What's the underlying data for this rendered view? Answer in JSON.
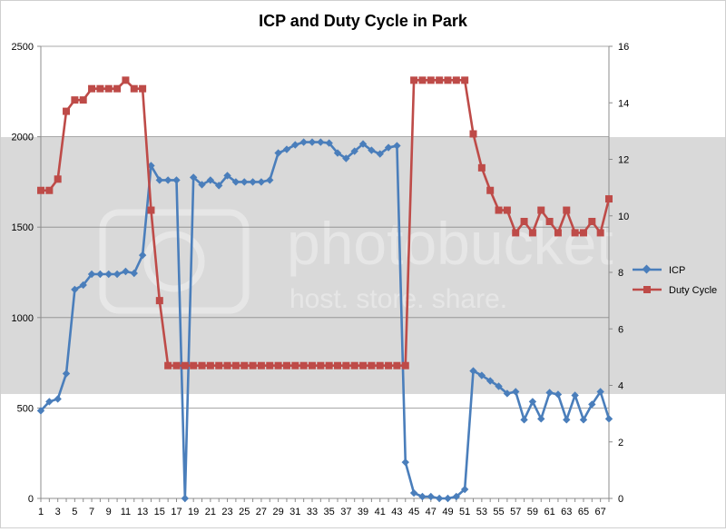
{
  "chart_data": {
    "type": "line",
    "title": "ICP and Duty Cycle in Park",
    "xlabel": "",
    "ylabel": "",
    "y2label": "",
    "x": [
      1,
      2,
      3,
      4,
      5,
      6,
      7,
      8,
      9,
      10,
      11,
      12,
      13,
      14,
      15,
      16,
      17,
      18,
      19,
      20,
      21,
      22,
      23,
      24,
      25,
      26,
      27,
      28,
      29,
      30,
      31,
      32,
      33,
      34,
      35,
      36,
      37,
      38,
      39,
      40,
      41,
      42,
      43,
      44,
      45,
      46,
      47,
      48,
      49,
      50,
      51,
      52,
      53,
      54,
      55,
      56,
      57,
      58,
      59,
      60,
      61,
      62,
      63,
      64,
      65,
      66,
      67,
      68
    ],
    "x_tick_labels": [
      "1",
      "3",
      "5",
      "7",
      "9",
      "11",
      "13",
      "15",
      "17",
      "19",
      "21",
      "23",
      "25",
      "27",
      "29",
      "31",
      "33",
      "35",
      "37",
      "39",
      "41",
      "43",
      "45",
      "47",
      "49",
      "51",
      "53",
      "55",
      "57",
      "59",
      "61",
      "63",
      "65",
      "67"
    ],
    "ylim": [
      0,
      2500
    ],
    "yticks": [
      "0",
      "500",
      "1000",
      "1500",
      "2000",
      "2500"
    ],
    "y2lim": [
      0,
      16
    ],
    "y2ticks": [
      "0",
      "2",
      "4",
      "6",
      "8",
      "10",
      "12",
      "14",
      "16"
    ],
    "grid": true,
    "legend_position": "right",
    "series": [
      {
        "name": "ICP",
        "axis": "left",
        "color": "#4a7ebb",
        "marker": "diamond",
        "values": [
          485,
          535,
          550,
          690,
          1155,
          1180,
          1240,
          1240,
          1240,
          1240,
          1255,
          1245,
          1345,
          1840,
          1760,
          1760,
          1760,
          0,
          1775,
          1735,
          1760,
          1730,
          1785,
          1750,
          1750,
          1750,
          1750,
          1760,
          1910,
          1930,
          1955,
          1970,
          1970,
          1970,
          1965,
          1910,
          1880,
          1920,
          1960,
          1925,
          1905,
          1940,
          1950,
          200,
          30,
          10,
          10,
          0,
          0,
          10,
          50,
          705,
          680,
          650,
          620,
          580,
          590,
          435,
          535,
          440,
          585,
          575,
          435,
          570,
          435,
          520,
          590,
          440
        ]
      },
      {
        "name": "Duty Cycle",
        "axis": "right",
        "color": "#be4b48",
        "marker": "square",
        "values": [
          10.9,
          10.9,
          11.3,
          13.7,
          14.1,
          14.1,
          14.5,
          14.5,
          14.5,
          14.5,
          14.8,
          14.5,
          14.5,
          10.2,
          7.0,
          4.7,
          4.7,
          4.7,
          4.7,
          4.7,
          4.7,
          4.7,
          4.7,
          4.7,
          4.7,
          4.7,
          4.7,
          4.7,
          4.7,
          4.7,
          4.7,
          4.7,
          4.7,
          4.7,
          4.7,
          4.7,
          4.7,
          4.7,
          4.7,
          4.7,
          4.7,
          4.7,
          4.7,
          4.7,
          14.8,
          14.8,
          14.8,
          14.8,
          14.8,
          14.8,
          14.8,
          12.9,
          11.7,
          10.9,
          10.2,
          10.2,
          9.4,
          9.8,
          9.4,
          10.2,
          9.8,
          9.4,
          10.2,
          9.4,
          9.4,
          9.8,
          9.4,
          10.6
        ]
      }
    ]
  },
  "watermark": {
    "brand": "photobucket",
    "tagline": "host. store. share."
  }
}
